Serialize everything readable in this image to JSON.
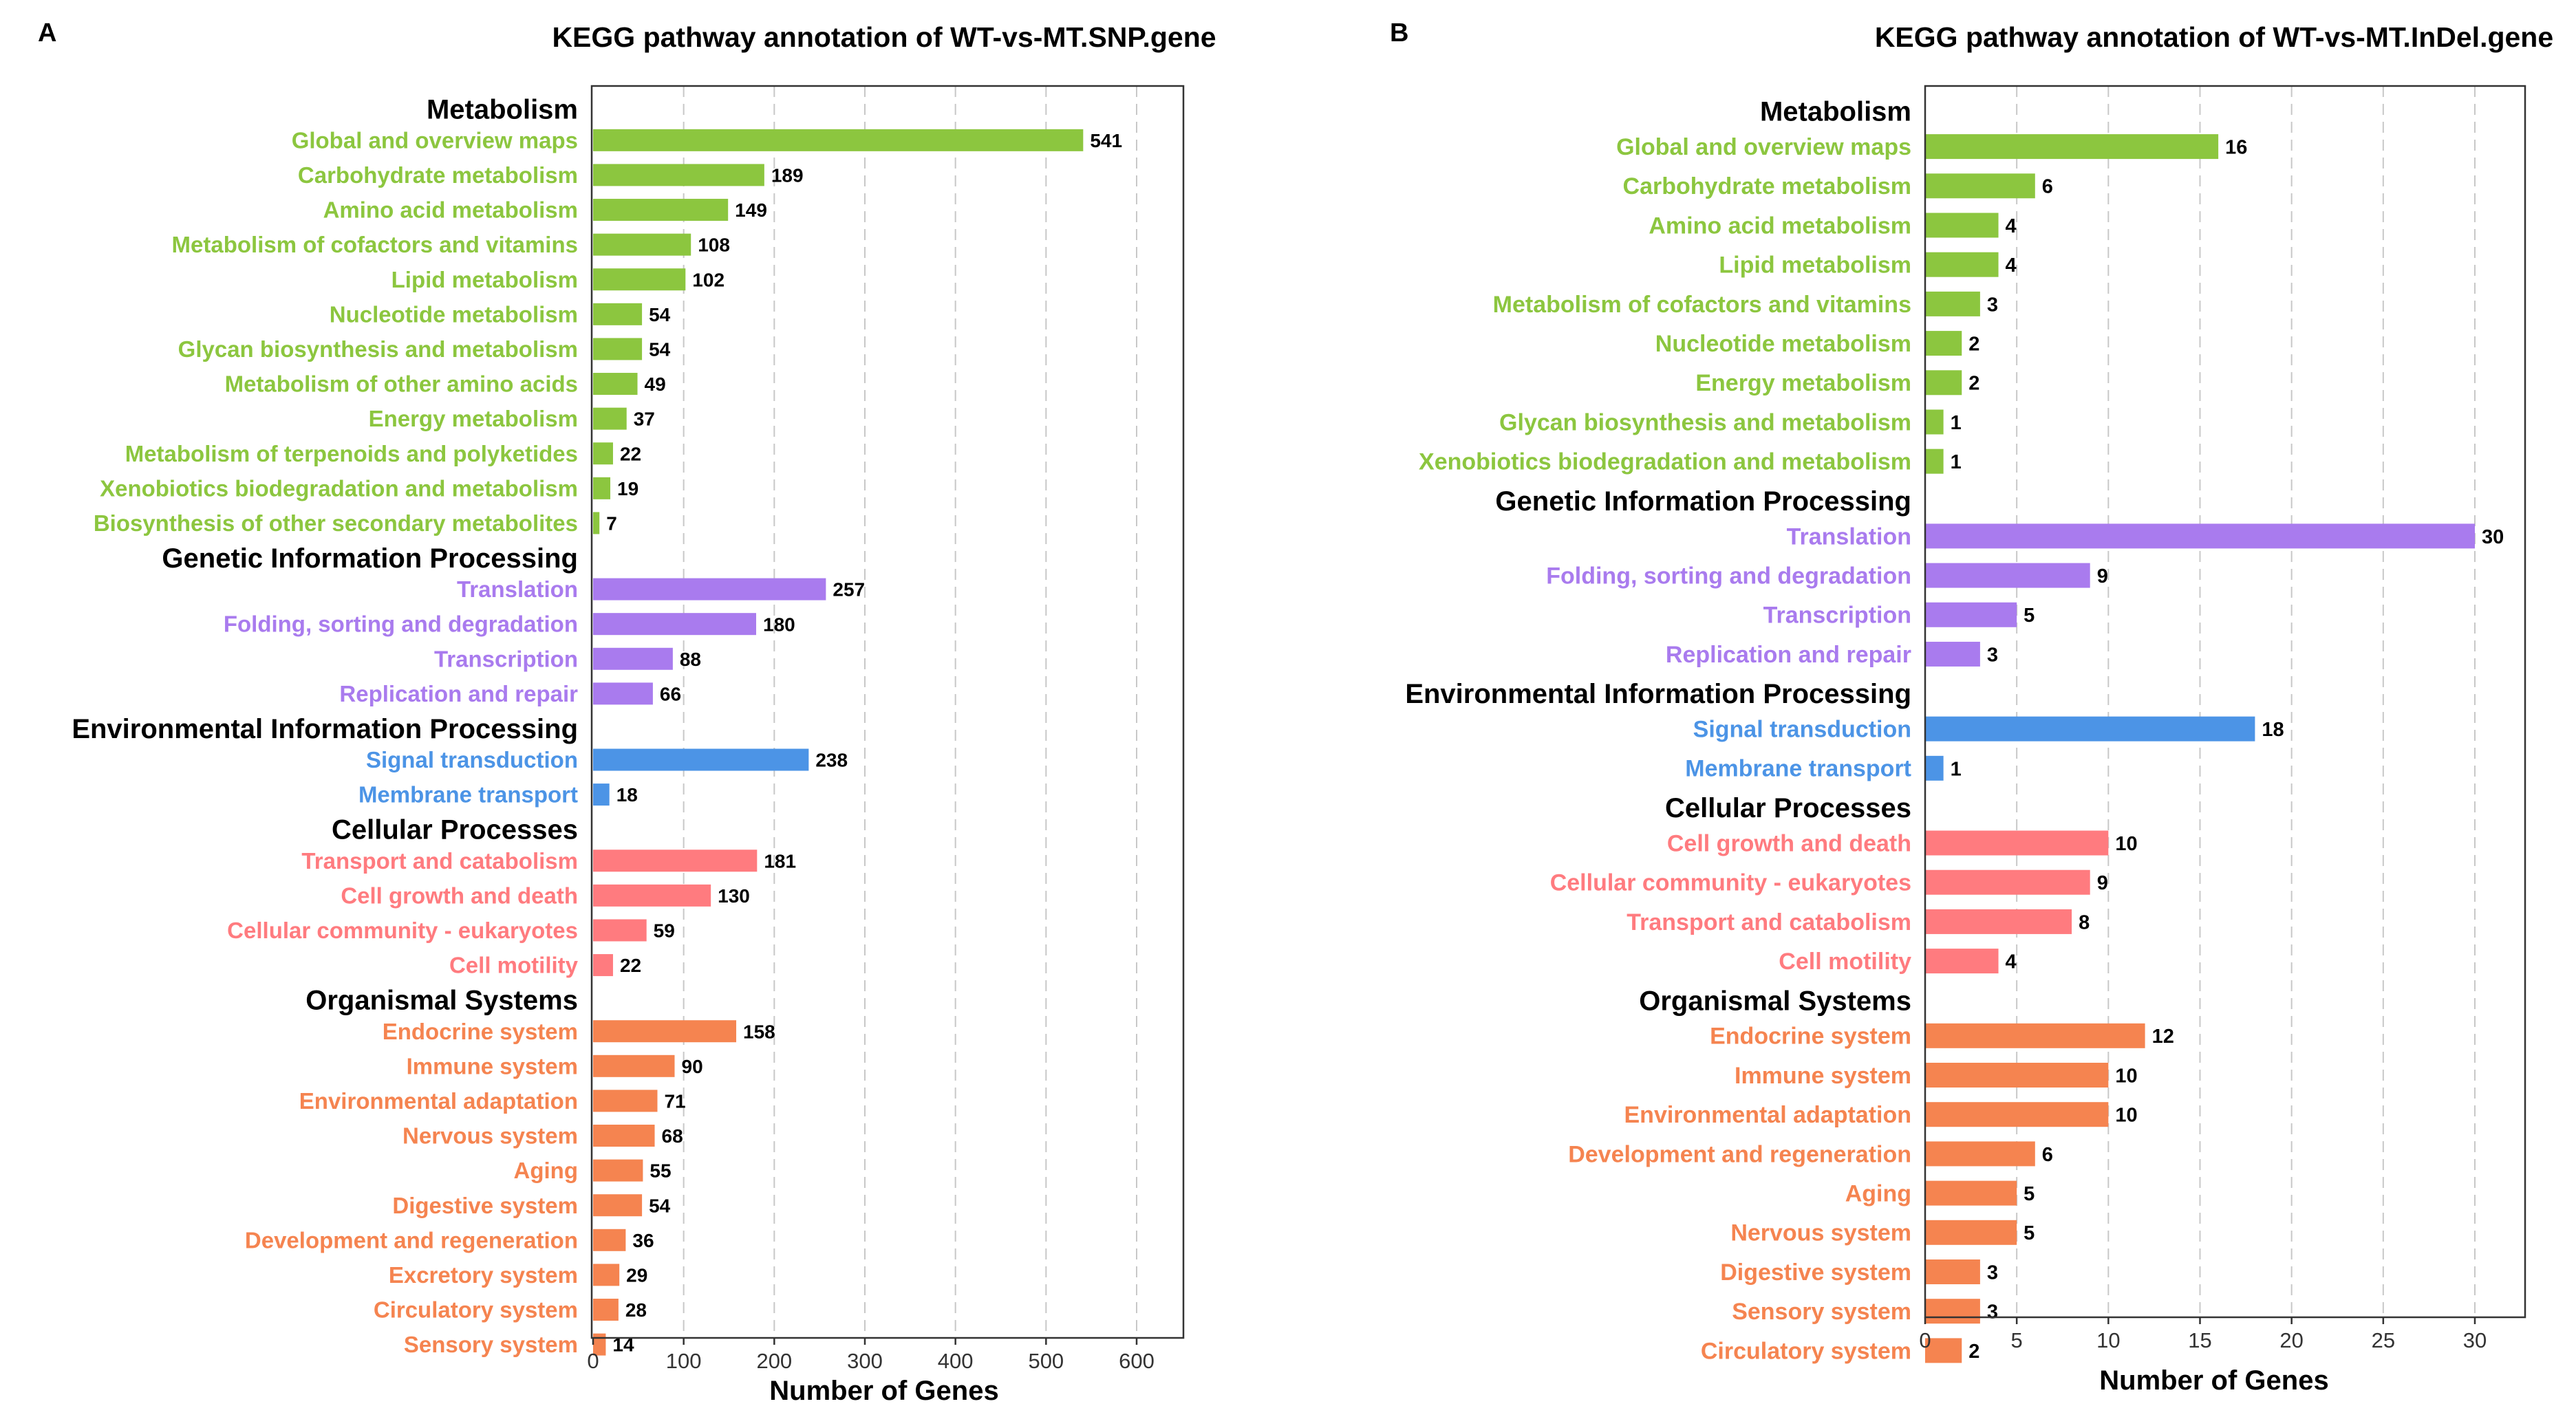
{
  "chart_data": [
    {
      "panel_label": "A",
      "type": "bar",
      "orientation": "horizontal",
      "title": "KEGG pathway annotation of WT-vs-MT.SNP.gene",
      "xlabel": "Number of Genes",
      "xlim": [
        0,
        650
      ],
      "xticks": [
        0,
        100,
        200,
        300,
        400,
        500,
        600
      ],
      "grid": "vertical dashed",
      "groups": [
        {
          "name": "Metabolism",
          "color": "#8CC63F",
          "items": [
            {
              "label": "Global and overview maps",
              "value": 541
            },
            {
              "label": "Carbohydrate metabolism",
              "value": 189
            },
            {
              "label": "Amino acid metabolism",
              "value": 149
            },
            {
              "label": "Metabolism of cofactors and vitamins",
              "value": 108
            },
            {
              "label": "Lipid metabolism",
              "value": 102
            },
            {
              "label": "Nucleotide metabolism",
              "value": 54
            },
            {
              "label": "Glycan biosynthesis and metabolism",
              "value": 54
            },
            {
              "label": "Metabolism of other amino acids",
              "value": 49
            },
            {
              "label": "Energy metabolism",
              "value": 37
            },
            {
              "label": "Metabolism of terpenoids and polyketides",
              "value": 22
            },
            {
              "label": "Xenobiotics biodegradation and metabolism",
              "value": 19
            },
            {
              "label": "Biosynthesis of other secondary metabolites",
              "value": 7
            }
          ]
        },
        {
          "name": "Genetic Information Processing",
          "color": "#A97BEE",
          "items": [
            {
              "label": "Translation",
              "value": 257
            },
            {
              "label": "Folding, sorting and degradation",
              "value": 180
            },
            {
              "label": "Transcription",
              "value": 88
            },
            {
              "label": "Replication and repair",
              "value": 66
            }
          ]
        },
        {
          "name": "Environmental Information Processing",
          "color": "#4C94E6",
          "items": [
            {
              "label": "Signal transduction",
              "value": 238
            },
            {
              "label": "Membrane transport",
              "value": 18
            }
          ]
        },
        {
          "name": "Cellular Processes",
          "color": "#FF7B7F",
          "items": [
            {
              "label": "Transport and catabolism",
              "value": 181
            },
            {
              "label": "Cell growth and death",
              "value": 130
            },
            {
              "label": "Cellular community - eukaryotes",
              "value": 59
            },
            {
              "label": "Cell motility",
              "value": 22
            }
          ]
        },
        {
          "name": "Organismal Systems",
          "color": "#F58450",
          "items": [
            {
              "label": "Endocrine system",
              "value": 158
            },
            {
              "label": "Immune system",
              "value": 90
            },
            {
              "label": "Environmental adaptation",
              "value": 71
            },
            {
              "label": "Nervous system",
              "value": 68
            },
            {
              "label": "Aging",
              "value": 55
            },
            {
              "label": "Digestive system",
              "value": 54
            },
            {
              "label": "Development and regeneration",
              "value": 36
            },
            {
              "label": "Excretory system",
              "value": 29
            },
            {
              "label": "Circulatory system",
              "value": 28
            },
            {
              "label": "Sensory system",
              "value": 14
            }
          ]
        }
      ]
    },
    {
      "panel_label": "B",
      "type": "bar",
      "orientation": "horizontal",
      "title": "KEGG pathway annotation of WT-vs-MT.InDel.gene",
      "xlabel": "Number of Genes",
      "xlim": [
        0,
        33
      ],
      "xticks": [
        0,
        5,
        10,
        15,
        20,
        25,
        30
      ],
      "grid": "vertical dashed",
      "groups": [
        {
          "name": "Metabolism",
          "color": "#8CC63F",
          "items": [
            {
              "label": "Global and overview maps",
              "value": 16
            },
            {
              "label": "Carbohydrate metabolism",
              "value": 6
            },
            {
              "label": "Amino acid metabolism",
              "value": 4
            },
            {
              "label": "Lipid metabolism",
              "value": 4
            },
            {
              "label": "Metabolism of cofactors and vitamins",
              "value": 3
            },
            {
              "label": "Nucleotide metabolism",
              "value": 2
            },
            {
              "label": "Energy metabolism",
              "value": 2
            },
            {
              "label": "Glycan biosynthesis and metabolism",
              "value": 1
            },
            {
              "label": "Xenobiotics biodegradation and metabolism",
              "value": 1
            }
          ]
        },
        {
          "name": "Genetic Information Processing",
          "color": "#A97BEE",
          "items": [
            {
              "label": "Translation",
              "value": 30
            },
            {
              "label": "Folding, sorting and degradation",
              "value": 9
            },
            {
              "label": "Transcription",
              "value": 5
            },
            {
              "label": "Replication and repair",
              "value": 3
            }
          ]
        },
        {
          "name": "Environmental Information Processing",
          "color": "#4C94E6",
          "items": [
            {
              "label": "Signal transduction",
              "value": 18
            },
            {
              "label": "Membrane transport",
              "value": 1
            }
          ]
        },
        {
          "name": "Cellular Processes",
          "color": "#FF7B7F",
          "items": [
            {
              "label": "Cell growth and death",
              "value": 10
            },
            {
              "label": "Cellular community - eukaryotes",
              "value": 9
            },
            {
              "label": "Transport and catabolism",
              "value": 8
            },
            {
              "label": "Cell motility",
              "value": 4
            }
          ]
        },
        {
          "name": "Organismal Systems",
          "color": "#F58450",
          "items": [
            {
              "label": "Endocrine system",
              "value": 12
            },
            {
              "label": "Immune system",
              "value": 10
            },
            {
              "label": "Environmental adaptation",
              "value": 10
            },
            {
              "label": "Development and regeneration",
              "value": 6
            },
            {
              "label": "Aging",
              "value": 5
            },
            {
              "label": "Nervous system",
              "value": 5
            },
            {
              "label": "Digestive system",
              "value": 3
            },
            {
              "label": "Sensory system",
              "value": 3
            },
            {
              "label": "Circulatory system",
              "value": 2
            }
          ]
        }
      ]
    }
  ]
}
